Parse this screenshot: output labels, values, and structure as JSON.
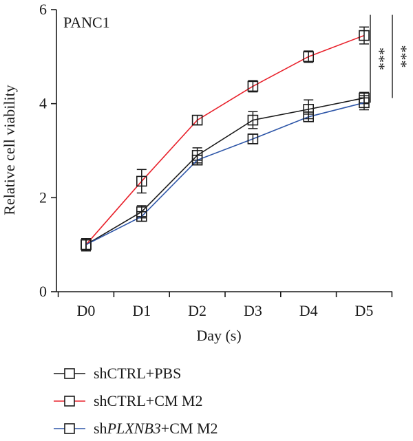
{
  "chart_data": {
    "type": "line",
    "panel_label": "PANC1",
    "xlabel": "Day (s)",
    "ylabel": "Relative cell viability",
    "categories": [
      "D0",
      "D1",
      "D2",
      "D3",
      "D4",
      "D5"
    ],
    "ylim": [
      0,
      6
    ],
    "yticks": [
      0,
      2,
      4,
      6
    ],
    "grid": false,
    "legend_position": "bottom",
    "series": [
      {
        "name": "shCTRL+PBS",
        "name_prefix": "shCTRL+PBS",
        "name_italic": "",
        "name_suffix": "",
        "color": "#1a1a1a",
        "values": [
          1.0,
          1.7,
          2.9,
          3.65,
          3.88,
          4.12
        ],
        "errors": [
          0.13,
          0.13,
          0.16,
          0.18,
          0.2,
          0.12
        ]
      },
      {
        "name": "shCTRL+CM M2",
        "name_prefix": "shCTRL+CM M2",
        "name_italic": "",
        "name_suffix": "",
        "color": "#e8202a",
        "values": [
          1.0,
          2.35,
          3.65,
          4.37,
          5.0,
          5.45
        ],
        "errors": [
          0.13,
          0.25,
          0.1,
          0.12,
          0.12,
          0.18
        ]
      },
      {
        "name": "shPLXNB3+CM M2",
        "name_prefix": "sh",
        "name_italic": "PLXNB3",
        "name_suffix": "+CM M2",
        "color": "#2e56a8",
        "values": [
          1.0,
          1.6,
          2.8,
          3.25,
          3.72,
          4.02
        ],
        "errors": [
          0.13,
          0.1,
          0.1,
          0.1,
          0.1,
          0.15
        ]
      }
    ],
    "annotations": [
      {
        "text": "***",
        "from_value": 4.02,
        "to_value": 5.45
      },
      {
        "text": "***",
        "from_value": 4.12,
        "to_value": 5.45
      }
    ]
  }
}
